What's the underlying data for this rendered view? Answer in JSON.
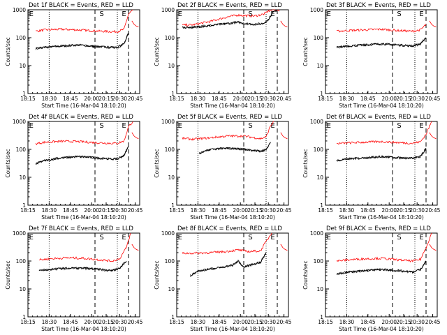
{
  "figure": {
    "start_time_label": "Start Time (16-Mar-04 18:10:20)"
  },
  "chart_data": [
    {
      "type": "line",
      "title": "Det 1f BLACK = Events, RED = LLD",
      "xlabel": "Start Time (16-Mar-04 18:10:20)",
      "ylabel": "Counts/sec",
      "xticks": [
        "18:15",
        "18:30",
        "18:45",
        "20:00",
        "20:15",
        "20:30",
        "20:45"
      ],
      "yticks": [
        "1",
        "10",
        "100",
        "1000"
      ],
      "ylim": [
        1,
        1000
      ],
      "event_markers": [
        "E",
        "S",
        "E"
      ],
      "series": [
        {
          "name": "Events",
          "color": "#000000",
          "t": [
            0.07,
            0.15,
            0.3,
            0.45,
            0.6,
            0.75,
            0.8,
            0.86,
            0.9
          ],
          "v": [
            40,
            45,
            50,
            55,
            48,
            45,
            45,
            60,
            150
          ]
        },
        {
          "name": "LLD",
          "color": "#ff0000",
          "t": [
            0.07,
            0.15,
            0.3,
            0.45,
            0.6,
            0.75,
            0.8,
            0.86,
            0.9,
            0.94
          ],
          "v": [
            170,
            190,
            200,
            190,
            175,
            165,
            165,
            200,
            700,
            1000
          ]
        },
        {
          "name": "Events",
          "color": "#000000",
          "t": [
            0.07,
            0.15,
            0.3,
            0.45,
            0.6,
            0.75,
            0.8,
            0.86,
            0.9
          ],
          "v": [
            40,
            45,
            50,
            55,
            48,
            45,
            45,
            60,
            150
          ]
        }
      ]
    },
    {
      "type": "line",
      "title": "Det 2f BLACK = Events, RED = LLD",
      "xlabel": "Start Time (16-Mar-04 18:10:20)",
      "ylabel": "Counts/sec",
      "xticks": [
        "18:15",
        "18:30",
        "18:45",
        "20:00",
        "20:15",
        "20:30",
        "20:45"
      ],
      "yticks": [
        "1",
        "10",
        "100",
        "1000"
      ],
      "ylim": [
        1,
        1000
      ],
      "event_markers": [
        "E",
        "S",
        "E"
      ],
      "series": [
        {
          "name": "Events",
          "color": "#000000",
          "t": [
            0.05,
            0.15,
            0.3,
            0.45,
            0.55,
            0.6,
            0.7,
            0.78,
            0.82,
            0.86,
            0.9
          ],
          "v": [
            230,
            240,
            270,
            320,
            360,
            320,
            300,
            330,
            450,
            800,
            1000
          ]
        },
        {
          "name": "LLD",
          "color": "#ff0000",
          "t": [
            0.05,
            0.15,
            0.3,
            0.45,
            0.55,
            0.6,
            0.7,
            0.78,
            0.82,
            0.86,
            0.9,
            0.92
          ],
          "v": [
            280,
            290,
            380,
            550,
            650,
            620,
            600,
            700,
            900,
            1000,
            1000,
            900
          ]
        },
        {
          "name": "Events",
          "color": "#000000",
          "t": [
            0.05,
            0.15,
            0.3,
            0.45,
            0.55,
            0.6,
            0.7,
            0.78,
            0.82,
            0.86,
            0.9
          ],
          "v": [
            230,
            240,
            270,
            320,
            360,
            320,
            300,
            330,
            450,
            800,
            1000
          ]
        }
      ]
    },
    {
      "type": "line",
      "title": "Det 3f BLACK = Events, RED = LLD",
      "xlabel": "Start Time (16-Mar-04 18:10:20)",
      "ylabel": "Counts/sec",
      "xticks": [
        "18:15",
        "18:30",
        "18:45",
        "20:00",
        "20:15",
        "20:30",
        "20:45"
      ],
      "yticks": [
        "1",
        "10",
        "100",
        "1000"
      ],
      "ylim": [
        1,
        1000
      ],
      "event_markers": [
        "E",
        "S",
        "E"
      ],
      "series": [
        {
          "name": "Events",
          "color": "#000000",
          "t": [
            0.1,
            0.2,
            0.35,
            0.5,
            0.65,
            0.78,
            0.85,
            0.9
          ],
          "v": [
            45,
            50,
            55,
            60,
            55,
            50,
            60,
            100
          ]
        },
        {
          "name": "LLD",
          "color": "#ff0000",
          "t": [
            0.1,
            0.2,
            0.35,
            0.5,
            0.65,
            0.78,
            0.85,
            0.9
          ],
          "v": [
            170,
            180,
            190,
            200,
            180,
            170,
            190,
            300
          ]
        },
        {
          "name": "Events",
          "color": "#000000",
          "t": [
            0.1,
            0.2,
            0.35,
            0.5,
            0.65,
            0.78,
            0.85,
            0.9
          ],
          "v": [
            45,
            50,
            55,
            60,
            55,
            50,
            60,
            100
          ]
        }
      ]
    },
    {
      "type": "line",
      "title": "Det 4f BLACK = Events, RED = LLD",
      "xlabel": "Start Time (16-Mar-04 18:10:20)",
      "ylabel": "Counts/sec",
      "xticks": [
        "18:15",
        "18:30",
        "18:45",
        "20:00",
        "20:15",
        "20:30",
        "20:45"
      ],
      "yticks": [
        "1",
        "10",
        "100",
        "1000"
      ],
      "ylim": [
        1,
        1000
      ],
      "event_markers": [
        "E",
        "S",
        "E"
      ],
      "series": [
        {
          "name": "Events",
          "color": "#000000",
          "t": [
            0.07,
            0.15,
            0.3,
            0.45,
            0.6,
            0.75,
            0.8,
            0.86,
            0.9
          ],
          "v": [
            30,
            40,
            50,
            55,
            50,
            45,
            45,
            60,
            130
          ]
        },
        {
          "name": "LLD",
          "color": "#ff0000",
          "t": [
            0.07,
            0.15,
            0.3,
            0.45,
            0.6,
            0.75,
            0.8,
            0.86,
            0.9,
            0.94
          ],
          "v": [
            160,
            180,
            195,
            190,
            175,
            165,
            165,
            200,
            650,
            1000
          ]
        },
        {
          "name": "Events",
          "color": "#000000",
          "t": [
            0.07,
            0.15,
            0.3,
            0.45,
            0.6,
            0.75,
            0.8,
            0.86,
            0.9
          ],
          "v": [
            30,
            40,
            50,
            55,
            50,
            45,
            45,
            60,
            130
          ]
        }
      ]
    },
    {
      "type": "line",
      "title": "Det 5f BLACK = Events, RED = LLD",
      "xlabel": "Start Time (16-Mar-04 18:10:20)",
      "ylabel": "Counts/sec",
      "xticks": [
        "18:15",
        "18:30",
        "18:45",
        "20:00",
        "20:15",
        "20:30",
        "20:45"
      ],
      "yticks": [
        "1",
        "10",
        "100",
        "1000"
      ],
      "ylim": [
        1,
        1000
      ],
      "event_markers": [
        "E",
        "S",
        "E"
      ],
      "series": [
        {
          "name": "Events",
          "color": "#000000",
          "t": [
            0.2,
            0.3,
            0.45,
            0.6,
            0.7,
            0.75,
            0.8,
            0.84
          ],
          "v": [
            70,
            100,
            110,
            100,
            90,
            85,
            100,
            180
          ]
        },
        {
          "name": "LLD",
          "color": "#ff0000",
          "t": [
            0.05,
            0.15,
            0.3,
            0.45,
            0.6,
            0.7,
            0.75,
            0.8,
            0.84,
            0.87
          ],
          "v": [
            250,
            230,
            260,
            300,
            300,
            260,
            240,
            280,
            700,
            1000
          ]
        },
        {
          "name": "Events",
          "color": "#000000",
          "t": [
            0.2,
            0.3,
            0.45,
            0.6,
            0.7,
            0.75,
            0.8,
            0.84
          ],
          "v": [
            70,
            100,
            110,
            100,
            90,
            85,
            100,
            180
          ]
        }
      ]
    },
    {
      "type": "line",
      "title": "Det 6f BLACK = Events, RED = LLD",
      "xlabel": "Start Time (16-Mar-04 18:10:20)",
      "ylabel": "Counts/sec",
      "xticks": [
        "18:15",
        "18:30",
        "18:45",
        "20:00",
        "20:15",
        "20:30",
        "20:45"
      ],
      "yticks": [
        "1",
        "10",
        "100",
        "1000"
      ],
      "ylim": [
        1,
        1000
      ],
      "event_markers": [
        "E",
        "S",
        "E"
      ],
      "series": [
        {
          "name": "Events",
          "color": "#000000",
          "t": [
            0.1,
            0.2,
            0.35,
            0.5,
            0.65,
            0.78,
            0.85,
            0.9
          ],
          "v": [
            40,
            45,
            50,
            55,
            50,
            48,
            55,
            110
          ]
        },
        {
          "name": "LLD",
          "color": "#ff0000",
          "t": [
            0.1,
            0.2,
            0.35,
            0.5,
            0.65,
            0.78,
            0.85,
            0.9,
            0.95
          ],
          "v": [
            160,
            170,
            180,
            190,
            175,
            165,
            185,
            350,
            1000
          ]
        },
        {
          "name": "Events",
          "color": "#000000",
          "t": [
            0.1,
            0.2,
            0.35,
            0.5,
            0.65,
            0.78,
            0.85,
            0.9
          ],
          "v": [
            40,
            45,
            50,
            55,
            50,
            48,
            55,
            110
          ]
        }
      ]
    },
    {
      "type": "line",
      "title": "Det 7f BLACK = Events, RED = LLD",
      "xlabel": "Start Time (16-Mar-04 18:10:20)",
      "ylabel": "Counts/sec",
      "xticks": [
        "18:15",
        "18:30",
        "18:45",
        "20:00",
        "20:15",
        "20:30",
        "20:45"
      ],
      "yticks": [
        "1",
        "10",
        "100",
        "1000"
      ],
      "ylim": [
        1,
        1000
      ],
      "event_markers": [
        "E",
        "S",
        "E"
      ],
      "series": [
        {
          "name": "Events",
          "color": "#000000",
          "t": [
            0.1,
            0.2,
            0.35,
            0.5,
            0.65,
            0.75,
            0.82,
            0.88
          ],
          "v": [
            45,
            50,
            55,
            55,
            50,
            45,
            55,
            100
          ]
        },
        {
          "name": "LLD",
          "color": "#ff0000",
          "t": [
            0.1,
            0.2,
            0.35,
            0.5,
            0.65,
            0.75,
            0.82,
            0.88,
            0.92
          ],
          "v": [
            110,
            120,
            130,
            125,
            110,
            100,
            120,
            300,
            1000
          ]
        },
        {
          "name": "Events",
          "color": "#000000",
          "t": [
            0.1,
            0.2,
            0.35,
            0.5,
            0.65,
            0.75,
            0.82,
            0.88
          ],
          "v": [
            45,
            50,
            55,
            55,
            50,
            45,
            55,
            100
          ]
        }
      ]
    },
    {
      "type": "line",
      "title": "Det 8f BLACK = Events, RED = LLD",
      "xlabel": "Start Time (16-Mar-04 18:10:20)",
      "ylabel": "Counts/sec",
      "xticks": [
        "18:15",
        "18:30",
        "18:45",
        "20:00",
        "20:15",
        "20:30",
        "20:45"
      ],
      "yticks": [
        "1",
        "10",
        "100",
        "1000"
      ],
      "ylim": [
        1,
        1000
      ],
      "event_markers": [
        "E",
        "S",
        "E"
      ],
      "series": [
        {
          "name": "Events",
          "color": "#000000",
          "t": [
            0.12,
            0.2,
            0.35,
            0.5,
            0.55,
            0.6,
            0.65,
            0.75,
            0.8
          ],
          "v": [
            30,
            45,
            55,
            70,
            100,
            60,
            70,
            90,
            200
          ]
        },
        {
          "name": "LLD",
          "color": "#ff0000",
          "t": [
            0.05,
            0.15,
            0.3,
            0.45,
            0.55,
            0.6,
            0.65,
            0.75,
            0.8,
            0.85
          ],
          "v": [
            190,
            190,
            200,
            220,
            250,
            230,
            220,
            230,
            500,
            1000
          ]
        },
        {
          "name": "Events",
          "color": "#000000",
          "t": [
            0.12,
            0.2,
            0.35,
            0.5,
            0.55,
            0.6,
            0.65,
            0.75,
            0.8
          ],
          "v": [
            30,
            45,
            55,
            70,
            100,
            60,
            70,
            90,
            200
          ]
        }
      ]
    },
    {
      "type": "line",
      "title": "Det 9f BLACK = Events, RED = LLD",
      "xlabel": "Start Time (16-Mar-04 18:10:20)",
      "ylabel": "Counts/sec",
      "xticks": [
        "18:15",
        "18:30",
        "18:45",
        "20:00",
        "20:15",
        "20:30",
        "20:45"
      ],
      "yticks": [
        "1",
        "10",
        "100",
        "1000"
      ],
      "ylim": [
        1,
        1000
      ],
      "event_markers": [
        "E",
        "S",
        "E"
      ],
      "series": [
        {
          "name": "Events",
          "color": "#000000",
          "t": [
            0.1,
            0.2,
            0.35,
            0.5,
            0.65,
            0.78,
            0.85,
            0.9
          ],
          "v": [
            35,
            40,
            45,
            50,
            45,
            40,
            50,
            100
          ]
        },
        {
          "name": "LLD",
          "color": "#ff0000",
          "t": [
            0.1,
            0.2,
            0.35,
            0.5,
            0.65,
            0.78,
            0.85,
            0.9,
            0.95
          ],
          "v": [
            100,
            110,
            120,
            125,
            110,
            100,
            115,
            300,
            1000
          ]
        },
        {
          "name": "Events",
          "color": "#000000",
          "t": [
            0.1,
            0.2,
            0.35,
            0.5,
            0.65,
            0.78,
            0.85,
            0.9
          ],
          "v": [
            35,
            40,
            45,
            50,
            45,
            40,
            50,
            100
          ]
        }
      ]
    }
  ]
}
